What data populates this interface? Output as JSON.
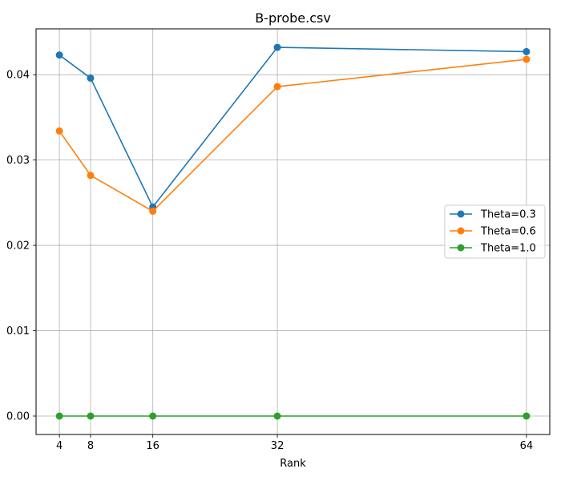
{
  "chart_data": {
    "type": "line",
    "title": "B-probe.csv",
    "xlabel": "Rank",
    "ylabel": "",
    "x": [
      4,
      8,
      16,
      32,
      64
    ],
    "x_tick_labels": [
      "4",
      "8",
      "16",
      "32",
      "64"
    ],
    "xlim": [
      1,
      67
    ],
    "ylim": [
      -0.00216,
      0.04537
    ],
    "y_ticks": [
      0.0,
      0.01,
      0.02,
      0.03,
      0.04
    ],
    "y_tick_labels": [
      "0.00",
      "0.01",
      "0.02",
      "0.03",
      "0.04"
    ],
    "grid": true,
    "legend_placement": "center-right",
    "series": [
      {
        "name": "Theta=0.3",
        "color": "#1f77b4",
        "values": [
          0.0423,
          0.0396,
          0.0245,
          0.0432,
          0.0427
        ]
      },
      {
        "name": "Theta=0.6",
        "color": "#ff7f0e",
        "values": [
          0.0334,
          0.0282,
          0.024,
          0.0386,
          0.0418
        ]
      },
      {
        "name": "Theta=1.0",
        "color": "#2ca02c",
        "values": [
          0.0,
          0.0,
          0.0,
          0.0,
          0.0
        ]
      }
    ]
  }
}
